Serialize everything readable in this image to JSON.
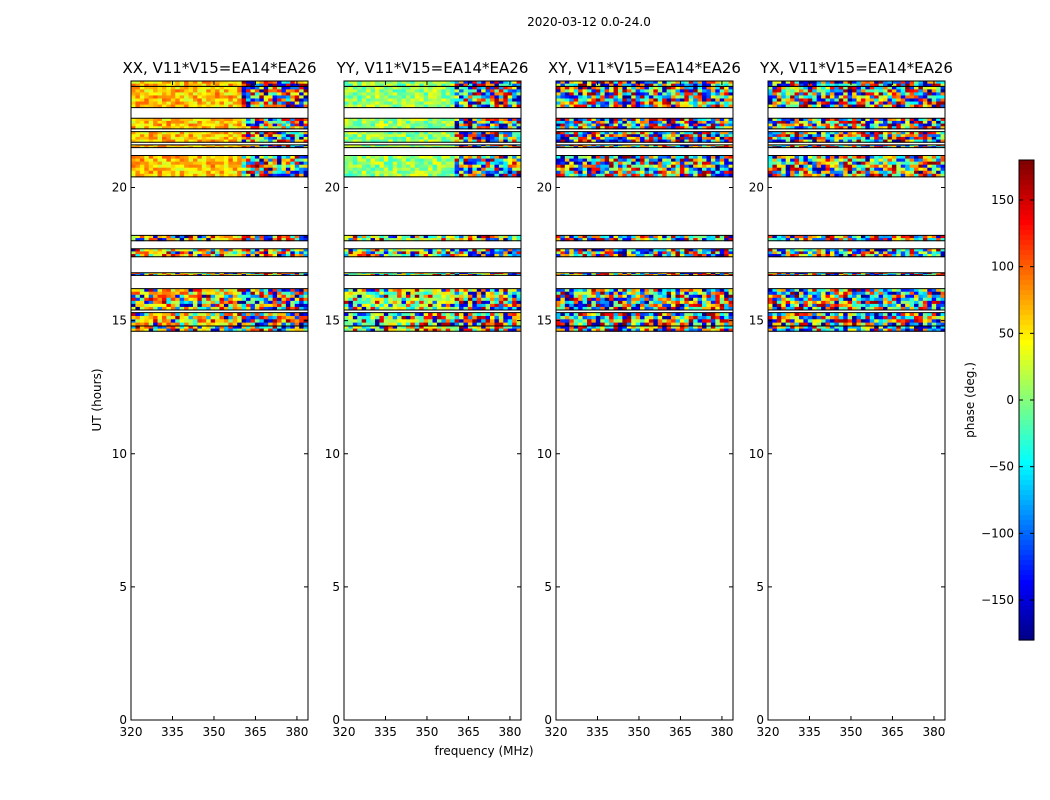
{
  "chart_data": {
    "type": "heatmap",
    "suptitle": "2020-03-12 0.0-24.0",
    "xlabel": "frequency (MHz)",
    "ylabel": "UT (hours)",
    "xlim": [
      320,
      384
    ],
    "ylim": [
      0,
      24
    ],
    "xticks": [
      320,
      335,
      350,
      365,
      380
    ],
    "yticks": [
      0,
      5,
      10,
      15,
      20
    ],
    "panels": [
      {
        "title": "XX, V11*V15=EA14*EA26",
        "pol": "XX"
      },
      {
        "title": "YY, V11*V15=EA14*EA26",
        "pol": "YY"
      },
      {
        "title": "XY, V11*V15=EA14*EA26",
        "pol": "XY"
      },
      {
        "title": "YX, V11*V15=EA14*EA26",
        "pol": "YX"
      }
    ],
    "data_bands_ut": [
      [
        14.6,
        14.8
      ],
      [
        14.8,
        15.3
      ],
      [
        15.4,
        16.2
      ],
      [
        16.7,
        16.8
      ],
      [
        17.4,
        17.7
      ],
      [
        18.0,
        18.2
      ],
      [
        20.4,
        21.2
      ],
      [
        21.5,
        21.6
      ],
      [
        21.7,
        22.1
      ],
      [
        22.2,
        22.6
      ],
      [
        23.0,
        23.8
      ],
      [
        23.8,
        24.0
      ]
    ],
    "colorbar": {
      "label": "phase (deg.)",
      "range": [
        -180,
        180
      ],
      "ticks": [
        -150,
        -100,
        -50,
        0,
        50,
        100,
        150
      ],
      "ticklabels": [
        "−150",
        "−100",
        "−50",
        "0",
        "50",
        "100",
        "150"
      ],
      "colormap": "jet"
    }
  }
}
